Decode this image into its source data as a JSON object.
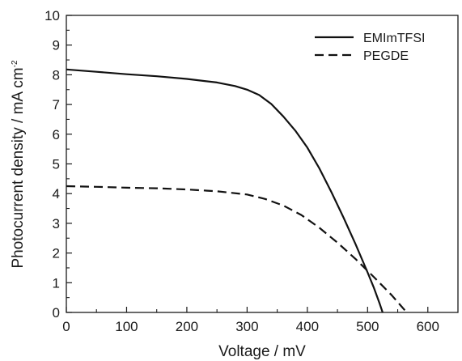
{
  "chart_data": {
    "type": "line",
    "xlabel": "Voltage / mV",
    "ylabel": "Photocurrent density / mA cm",
    "ylabel_superscript": "-2",
    "xlim": [
      0,
      650
    ],
    "ylim": [
      0,
      10
    ],
    "xticks": [
      0,
      100,
      200,
      300,
      400,
      500,
      600
    ],
    "yticks": [
      0,
      1,
      2,
      3,
      4,
      5,
      6,
      7,
      8,
      9,
      10
    ],
    "grid": false,
    "legend_position": "top-right",
    "series": [
      {
        "name": "EMImTFSI",
        "line_style": "solid",
        "color": "#111111",
        "x": [
          0,
          50,
          100,
          150,
          200,
          250,
          280,
          300,
          320,
          340,
          360,
          380,
          400,
          420,
          440,
          460,
          480,
          500,
          510,
          520,
          525
        ],
        "y": [
          8.18,
          8.1,
          8.02,
          7.95,
          7.86,
          7.74,
          7.62,
          7.5,
          7.32,
          7.02,
          6.6,
          6.12,
          5.55,
          4.85,
          4.05,
          3.2,
          2.3,
          1.35,
          0.85,
          0.3,
          0.0
        ]
      },
      {
        "name": "PEGDE",
        "line_style": "dashed",
        "color": "#111111",
        "x": [
          0,
          50,
          100,
          150,
          200,
          250,
          300,
          330,
          360,
          390,
          420,
          450,
          480,
          510,
          540,
          565
        ],
        "y": [
          4.25,
          4.23,
          4.2,
          4.18,
          4.14,
          4.08,
          3.97,
          3.82,
          3.6,
          3.28,
          2.85,
          2.35,
          1.8,
          1.2,
          0.58,
          0.0
        ]
      }
    ]
  }
}
